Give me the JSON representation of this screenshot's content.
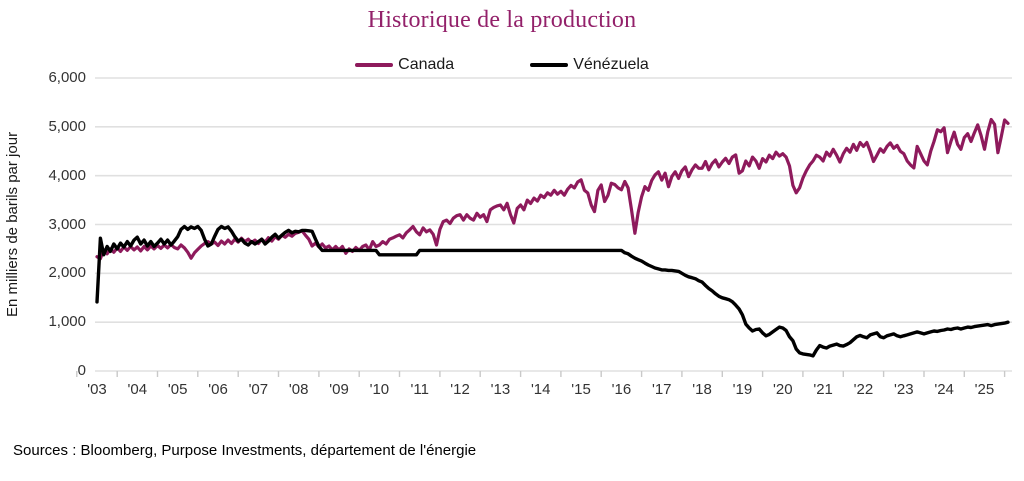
{
  "chart_data": {
    "type": "line",
    "title": "Historique de la production",
    "ylabel": "En milliers de barils par jour",
    "xlabel": "",
    "grid": "horizontal",
    "legend_position": "top-center",
    "ylim": [
      0,
      6000
    ],
    "y_ticks": [
      0,
      1000,
      2000,
      3000,
      4000,
      5000,
      6000
    ],
    "y_tick_labels": [
      "0",
      "1,000",
      "2,000",
      "3,000",
      "4,000",
      "5,000",
      "6,000"
    ],
    "x_tick_labels": [
      "'03",
      "'04",
      "'05",
      "'06",
      "'07",
      "'08",
      "'09",
      "'10",
      "'11",
      "'12",
      "'13",
      "'14",
      "'15",
      "'16",
      "'17",
      "'18",
      "'19",
      "'20",
      "'21",
      "'22",
      "'23",
      "'24",
      "'25"
    ],
    "x_unit": "monthly, Jan 2003 - Aug 2025",
    "series": [
      {
        "name": "Canada",
        "color": "#8E1A5C",
        "values": [
          2340,
          2300,
          2480,
          2400,
          2500,
          2430,
          2520,
          2450,
          2540,
          2470,
          2550,
          2480,
          2540,
          2460,
          2550,
          2480,
          2560,
          2500,
          2570,
          2510,
          2580,
          2520,
          2590,
          2530,
          2500,
          2580,
          2520,
          2430,
          2310,
          2420,
          2490,
          2560,
          2610,
          2650,
          2600,
          2640,
          2570,
          2660,
          2600,
          2680,
          2610,
          2700,
          2640,
          2720,
          2650,
          2700,
          2630,
          2680,
          2610,
          2700,
          2640,
          2730,
          2660,
          2750,
          2700,
          2780,
          2740,
          2800,
          2760,
          2820,
          2840,
          2870,
          2780,
          2700,
          2560,
          2620,
          2540,
          2600,
          2520,
          2560,
          2480,
          2550,
          2480,
          2550,
          2410,
          2500,
          2450,
          2530,
          2470,
          2550,
          2580,
          2480,
          2650,
          2550,
          2580,
          2650,
          2600,
          2700,
          2725,
          2760,
          2790,
          2725,
          2830,
          2890,
          2960,
          2850,
          2790,
          2930,
          2850,
          2890,
          2800,
          2580,
          2900,
          3060,
          3090,
          3020,
          3130,
          3180,
          3200,
          3090,
          3200,
          3130,
          3090,
          3230,
          3150,
          3200,
          3060,
          3300,
          3350,
          3380,
          3400,
          3300,
          3435,
          3200,
          3030,
          3330,
          3400,
          3300,
          3500,
          3430,
          3540,
          3480,
          3600,
          3550,
          3650,
          3600,
          3700,
          3620,
          3680,
          3600,
          3720,
          3800,
          3750,
          3870,
          3915,
          3700,
          3645,
          3400,
          3265,
          3700,
          3810,
          3470,
          3600,
          3845,
          3820,
          3750,
          3710,
          3880,
          3750,
          3300,
          2820,
          3250,
          3570,
          3775,
          3700,
          3900,
          4015,
          4080,
          3910,
          4050,
          3775,
          3980,
          4080,
          3945,
          4100,
          4180,
          3980,
          4120,
          4220,
          4150,
          4150,
          4290,
          4120,
          4250,
          4320,
          4180,
          4280,
          4355,
          4250,
          4380,
          4425,
          4050,
          4100,
          4300,
          4200,
          4380,
          4300,
          4150,
          4350,
          4280,
          4420,
          4350,
          4480,
          4400,
          4450,
          4380,
          4200,
          3800,
          3650,
          3750,
          3950,
          4100,
          4220,
          4300,
          4420,
          4380,
          4300,
          4480,
          4400,
          4540,
          4420,
          4280,
          4450,
          4560,
          4480,
          4640,
          4520,
          4680,
          4600,
          4680,
          4500,
          4290,
          4420,
          4550,
          4480,
          4600,
          4670,
          4560,
          4620,
          4500,
          4450,
          4300,
          4220,
          4160,
          4600,
          4450,
          4300,
          4220,
          4500,
          4700,
          4940,
          4900,
          4980,
          4470,
          4700,
          4890,
          4640,
          4540,
          4780,
          4860,
          4700,
          4880,
          5040,
          4820,
          4540,
          4900,
          5150,
          5050,
          4470,
          4800,
          5140,
          5070
        ]
      },
      {
        "name": "Vénézuela",
        "color": "#000000",
        "values": [
          1415,
          2720,
          2380,
          2550,
          2450,
          2600,
          2500,
          2620,
          2540,
          2650,
          2560,
          2680,
          2740,
          2600,
          2680,
          2560,
          2650,
          2550,
          2620,
          2700,
          2600,
          2680,
          2580,
          2660,
          2750,
          2900,
          2960,
          2900,
          2950,
          2920,
          2960,
          2880,
          2700,
          2560,
          2600,
          2760,
          2900,
          2960,
          2920,
          2950,
          2860,
          2750,
          2660,
          2700,
          2620,
          2580,
          2650,
          2600,
          2650,
          2700,
          2600,
          2660,
          2740,
          2800,
          2720,
          2780,
          2840,
          2880,
          2830,
          2860,
          2850,
          2880,
          2880,
          2870,
          2860,
          2700,
          2550,
          2470,
          2470,
          2470,
          2470,
          2470,
          2470,
          2470,
          2470,
          2470,
          2470,
          2470,
          2470,
          2470,
          2470,
          2470,
          2470,
          2470,
          2380,
          2380,
          2380,
          2380,
          2380,
          2380,
          2380,
          2380,
          2380,
          2380,
          2380,
          2380,
          2470,
          2470,
          2470,
          2470,
          2470,
          2470,
          2470,
          2470,
          2470,
          2470,
          2470,
          2470,
          2470,
          2470,
          2470,
          2470,
          2470,
          2470,
          2470,
          2470,
          2470,
          2470,
          2470,
          2470,
          2470,
          2470,
          2470,
          2470,
          2470,
          2470,
          2470,
          2470,
          2470,
          2470,
          2470,
          2470,
          2470,
          2470,
          2470,
          2470,
          2470,
          2470,
          2470,
          2470,
          2470,
          2470,
          2470,
          2470,
          2470,
          2470,
          2470,
          2470,
          2470,
          2470,
          2470,
          2470,
          2470,
          2470,
          2470,
          2470,
          2470,
          2420,
          2400,
          2350,
          2310,
          2280,
          2250,
          2210,
          2170,
          2140,
          2110,
          2090,
          2070,
          2070,
          2060,
          2060,
          2050,
          2040,
          2000,
          1960,
          1930,
          1910,
          1890,
          1850,
          1820,
          1750,
          1690,
          1640,
          1580,
          1530,
          1500,
          1480,
          1460,
          1420,
          1350,
          1270,
          1150,
          960,
          880,
          820,
          850,
          860,
          780,
          720,
          750,
          800,
          850,
          900,
          880,
          830,
          700,
          620,
          450,
          370,
          350,
          340,
          330,
          310,
          430,
          520,
          490,
          470,
          510,
          530,
          550,
          520,
          510,
          540,
          580,
          640,
          700,
          730,
          700,
          680,
          740,
          760,
          780,
          700,
          680,
          720,
          740,
          760,
          720,
          700,
          720,
          740,
          760,
          780,
          800,
          780,
          760,
          780,
          800,
          820,
          810,
          830,
          840,
          860,
          850,
          870,
          880,
          860,
          880,
          900,
          890,
          910,
          920,
          930,
          940,
          950,
          930,
          950,
          960,
          970,
          980,
          1000
        ]
      }
    ]
  },
  "footer": {
    "source": "Sources : Bloomberg, Purpose Investments, département de l'énergie"
  },
  "colors": {
    "title": "#93216A",
    "grid": "#E0E0E0",
    "tick": "#C9C9C9",
    "axis_text": "#333333"
  }
}
